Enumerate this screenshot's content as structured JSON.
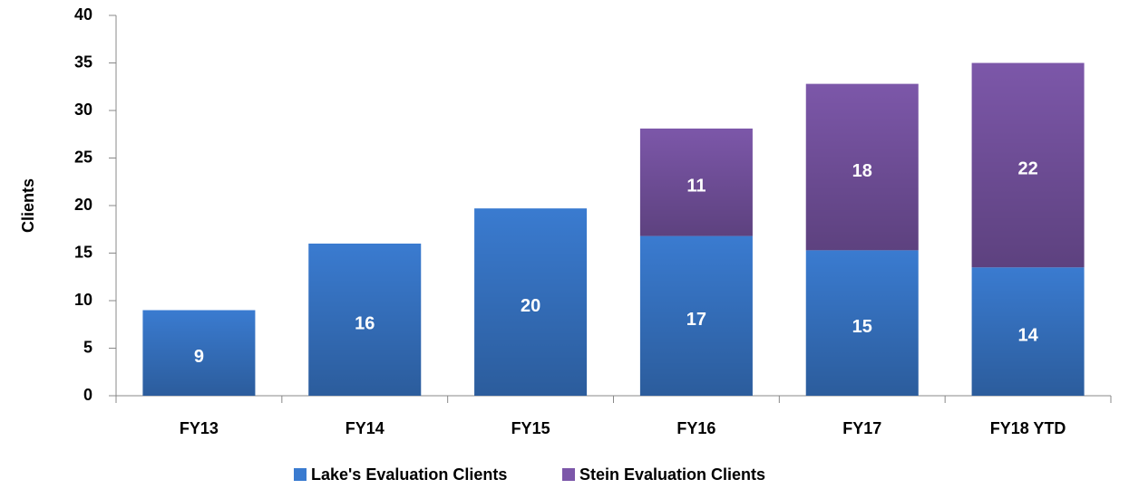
{
  "chart_data": {
    "type": "stacked_bar",
    "y_label": "Clients",
    "categories": [
      "FY13",
      "FY14",
      "FY15",
      "FY16",
      "FY17",
      "FY18 YTD"
    ],
    "series": [
      {
        "name": "Lake's Evaluation Clients",
        "color": "#3a7bd0",
        "values": [
          9,
          16,
          19.7,
          16.8,
          15.3,
          13.5
        ],
        "value_labels": [
          "9",
          "16",
          "20",
          "17",
          "15",
          "14"
        ]
      },
      {
        "name": "Stein Evaluation Clients",
        "color": "#7c57a9",
        "values": [
          null,
          null,
          null,
          11.3,
          17.5,
          21.5
        ],
        "value_labels": [
          null,
          null,
          null,
          "11",
          "18",
          "22"
        ]
      }
    ],
    "ylim": [
      0,
      40
    ],
    "yticks": [
      0,
      5,
      10,
      15,
      20,
      25,
      30,
      35,
      40
    ],
    "legend": "bottom"
  }
}
